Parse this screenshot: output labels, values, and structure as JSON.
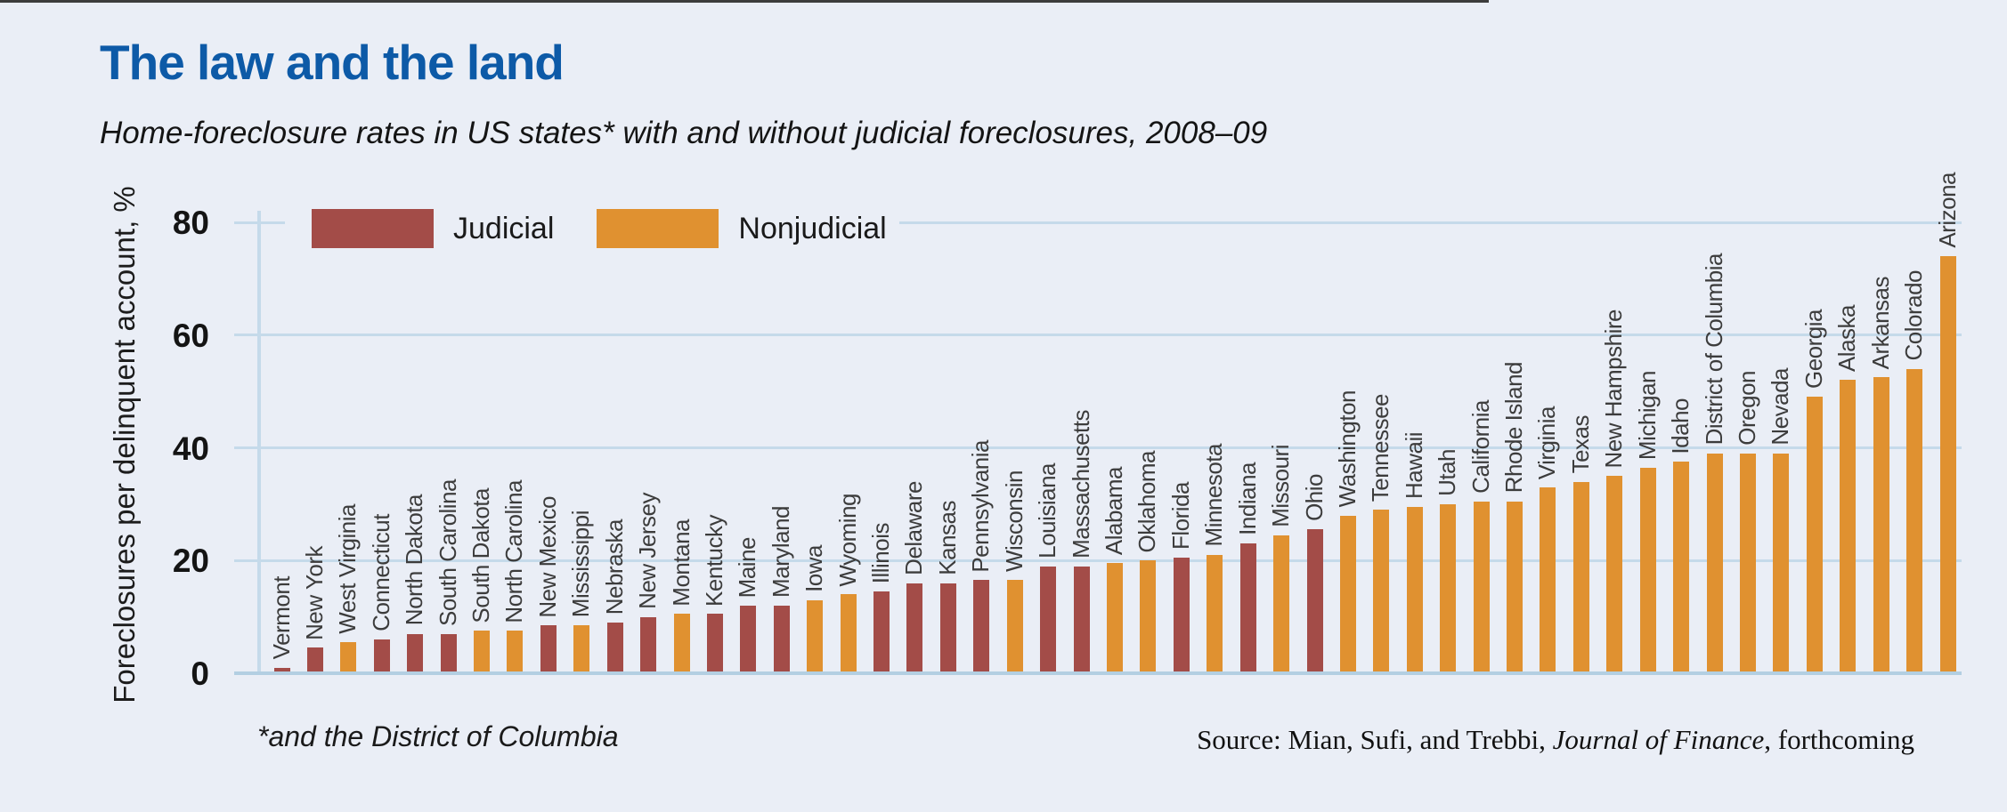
{
  "page": {
    "background_color": "#eaeef6",
    "top_rule_color": "#3c3c3c",
    "title_color": "#0d5aa7"
  },
  "header": {
    "title": "The law and the land",
    "subtitle": "Home-foreclosure rates in US states* with and without judicial foreclosures, 2008–09"
  },
  "legend": [
    {
      "key": "judicial",
      "label": "Judicial",
      "color": "#a34c48"
    },
    {
      "key": "nonjudicial",
      "label": "Nonjudicial",
      "color": "#e09130"
    }
  ],
  "chart_data": {
    "type": "bar",
    "title": "The law and the land",
    "subtitle": "Home-foreclosure rates in US states* with and without judicial foreclosures, 2008–09",
    "xlabel": "",
    "ylabel": "Foreclosures per delinquent account, %",
    "ylim": [
      0,
      80
    ],
    "yticks": [
      0,
      20,
      40,
      60,
      80
    ],
    "grid": "horizontal",
    "legend_position": "top-left",
    "bars": [
      {
        "state": "Vermont",
        "value": 1,
        "group": "judicial"
      },
      {
        "state": "New York",
        "value": 4.5,
        "group": "judicial"
      },
      {
        "state": "West Virginia",
        "value": 5.5,
        "group": "nonjudicial"
      },
      {
        "state": "Connecticut",
        "value": 6,
        "group": "judicial"
      },
      {
        "state": "North Dakota",
        "value": 7,
        "group": "judicial"
      },
      {
        "state": "South Carolina",
        "value": 7,
        "group": "judicial"
      },
      {
        "state": "South Dakota",
        "value": 7.5,
        "group": "nonjudicial"
      },
      {
        "state": "North Carolina",
        "value": 7.5,
        "group": "nonjudicial"
      },
      {
        "state": "New Mexico",
        "value": 8.5,
        "group": "judicial"
      },
      {
        "state": "Mississippi",
        "value": 8.5,
        "group": "nonjudicial"
      },
      {
        "state": "Nebraska",
        "value": 9,
        "group": "judicial"
      },
      {
        "state": "New Jersey",
        "value": 10,
        "group": "judicial"
      },
      {
        "state": "Montana",
        "value": 10.5,
        "group": "nonjudicial"
      },
      {
        "state": "Kentucky",
        "value": 10.5,
        "group": "judicial"
      },
      {
        "state": "Maine",
        "value": 12,
        "group": "judicial"
      },
      {
        "state": "Maryland",
        "value": 12,
        "group": "judicial"
      },
      {
        "state": "Iowa",
        "value": 13,
        "group": "nonjudicial"
      },
      {
        "state": "Wyoming",
        "value": 14,
        "group": "nonjudicial"
      },
      {
        "state": "Illinois",
        "value": 14.5,
        "group": "judicial"
      },
      {
        "state": "Delaware",
        "value": 16,
        "group": "judicial"
      },
      {
        "state": "Kansas",
        "value": 16,
        "group": "judicial"
      },
      {
        "state": "Pennsylvania",
        "value": 16.5,
        "group": "judicial"
      },
      {
        "state": "Wisconsin",
        "value": 16.5,
        "group": "nonjudicial"
      },
      {
        "state": "Louisiana",
        "value": 19,
        "group": "judicial"
      },
      {
        "state": "Massachusetts",
        "value": 19,
        "group": "judicial"
      },
      {
        "state": "Alabama",
        "value": 19.5,
        "group": "nonjudicial"
      },
      {
        "state": "Oklahoma",
        "value": 20,
        "group": "nonjudicial"
      },
      {
        "state": "Florida",
        "value": 20.5,
        "group": "judicial"
      },
      {
        "state": "Minnesota",
        "value": 21,
        "group": "nonjudicial"
      },
      {
        "state": "Indiana",
        "value": 23,
        "group": "judicial"
      },
      {
        "state": "Missouri",
        "value": 24.5,
        "group": "nonjudicial"
      },
      {
        "state": "Ohio",
        "value": 25.5,
        "group": "judicial"
      },
      {
        "state": "Washington",
        "value": 28,
        "group": "nonjudicial"
      },
      {
        "state": "Tennessee",
        "value": 29,
        "group": "nonjudicial"
      },
      {
        "state": "Hawaii",
        "value": 29.5,
        "group": "nonjudicial"
      },
      {
        "state": "Utah",
        "value": 30,
        "group": "nonjudicial"
      },
      {
        "state": "California",
        "value": 30.5,
        "group": "nonjudicial"
      },
      {
        "state": "Rhode Island",
        "value": 30.5,
        "group": "nonjudicial"
      },
      {
        "state": "Virginia",
        "value": 33,
        "group": "nonjudicial"
      },
      {
        "state": "Texas",
        "value": 34,
        "group": "nonjudicial"
      },
      {
        "state": "New Hampshire",
        "value": 35,
        "group": "nonjudicial"
      },
      {
        "state": "Michigan",
        "value": 36.5,
        "group": "nonjudicial"
      },
      {
        "state": "Idaho",
        "value": 37.5,
        "group": "nonjudicial"
      },
      {
        "state": "District of Columbia",
        "value": 39,
        "group": "nonjudicial"
      },
      {
        "state": "Oregon",
        "value": 39,
        "group": "nonjudicial"
      },
      {
        "state": "Nevada",
        "value": 39,
        "group": "nonjudicial"
      },
      {
        "state": "Georgia",
        "value": 49,
        "group": "nonjudicial"
      },
      {
        "state": "Alaska",
        "value": 52,
        "group": "nonjudicial"
      },
      {
        "state": "Arkansas",
        "value": 52.5,
        "group": "nonjudicial"
      },
      {
        "state": "Colorado",
        "value": 54,
        "group": "nonjudicial"
      },
      {
        "state": "Arizona",
        "value": 74,
        "group": "nonjudicial"
      }
    ]
  },
  "footer": {
    "footnote": "*and the District of Columbia",
    "source_prefix": "Source: Mian, Sufi, and Trebbi, ",
    "source_italic": "Journal of Finance",
    "source_suffix": ", forthcoming"
  }
}
